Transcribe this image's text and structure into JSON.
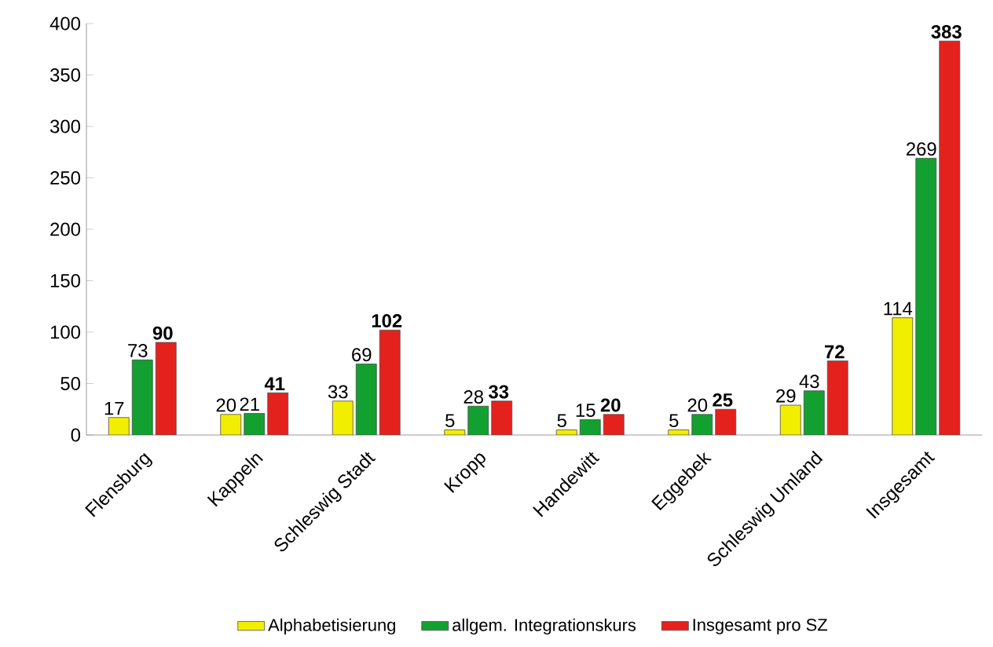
{
  "chart_data": {
    "type": "bar",
    "categories": [
      "Flensburg",
      "Kappeln",
      "Schleswig Stadt",
      "Kropp",
      "Handewitt",
      "Eggebek",
      "Schleswig Umland",
      "Insgesamt"
    ],
    "series": [
      {
        "name": "Alphabetisierung",
        "color": "#f2ee00",
        "values": [
          17,
          20,
          33,
          5,
          5,
          5,
          29,
          114
        ]
      },
      {
        "name": "allgem. Integrationskurs",
        "color": "#12a031",
        "values": [
          73,
          21,
          69,
          28,
          15,
          20,
          43,
          269
        ]
      },
      {
        "name": "Insgesamt pro SZ",
        "color": "#e5211e",
        "values": [
          90,
          41,
          102,
          33,
          20,
          25,
          72,
          383
        ]
      }
    ],
    "ylim": [
      0,
      400
    ],
    "yticks": [
      0,
      50,
      100,
      150,
      200,
      250,
      300,
      350,
      400
    ],
    "data_labels": true,
    "legend": "bottom",
    "grid": false
  }
}
